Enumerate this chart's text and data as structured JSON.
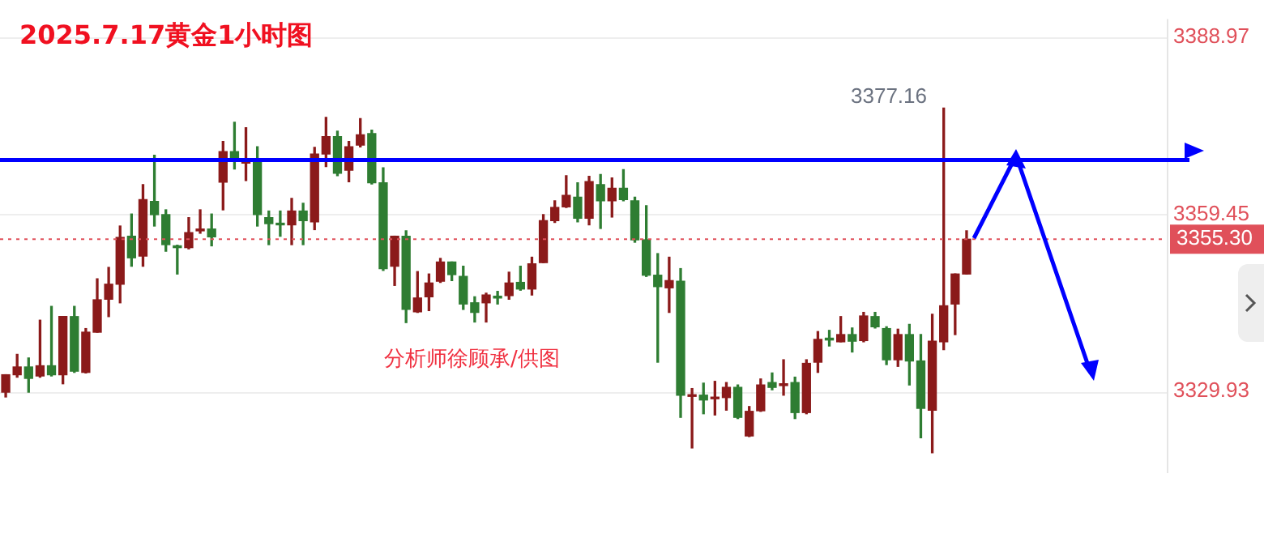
{
  "chart_data": {
    "type": "candlestick",
    "title": "2025.7.17黄金1小时图",
    "categories": [
      null,
      null,
      null,
      null,
      null,
      null,
      null,
      null,
      null,
      null,
      null,
      null,
      null,
      null,
      null,
      null,
      null,
      null,
      null,
      null,
      null,
      null,
      null,
      null,
      null,
      null,
      null,
      null,
      null,
      null,
      null,
      null,
      null,
      null,
      null,
      null,
      null,
      null,
      null,
      null,
      null,
      null,
      null,
      null,
      null,
      null,
      null,
      null,
      null,
      null,
      null,
      null,
      null,
      null,
      null,
      null,
      null,
      null,
      null,
      null,
      null,
      null,
      null,
      null,
      null,
      null,
      null,
      null,
      null,
      null,
      null,
      null,
      null,
      null,
      null,
      null,
      null,
      null,
      null,
      null,
      null,
      null,
      null,
      null,
      null,
      null,
      null,
      null,
      null,
      null,
      null,
      null,
      null,
      null,
      null,
      null,
      null,
      null,
      null,
      null,
      null,
      null
    ],
    "ohlc": [
      [
        3329.8,
        3332.7,
        3329.0,
        3332.7
      ],
      [
        3332.7,
        3336.1,
        3332.3,
        3334.0
      ],
      [
        3334.0,
        3335.5,
        3329.8,
        3332.1
      ],
      [
        3332.5,
        3341.8,
        3332.3,
        3334.2
      ],
      [
        3334.2,
        3344.1,
        3332.5,
        3332.7
      ],
      [
        3332.7,
        3342.4,
        3331.2,
        3342.4
      ],
      [
        3342.4,
        3344.1,
        3333.1,
        3333.3
      ],
      [
        3333.1,
        3340.4,
        3333.0,
        3339.8
      ],
      [
        3339.8,
        3348.7,
        3339.8,
        3345.2
      ],
      [
        3345.3,
        3350.6,
        3342.4,
        3347.8
      ],
      [
        3347.8,
        3357.5,
        3344.7,
        3355.6
      ],
      [
        3355.8,
        3359.5,
        3350.8,
        3352.2
      ],
      [
        3352.5,
        3364.4,
        3350.8,
        3361.9
      ],
      [
        3361.6,
        3369.3,
        3357.5,
        3359.4
      ],
      [
        3359.4,
        3360.2,
        3353.3,
        3354.4
      ],
      [
        3354.2,
        3354.3,
        3349.5,
        3353.9
      ],
      [
        3353.9,
        3358.9,
        3353.7,
        3356.4
      ],
      [
        3356.7,
        3360.2,
        3356.3,
        3357.0
      ],
      [
        3357.0,
        3359.5,
        3354.2,
        3355.7
      ],
      [
        3364.8,
        3371.6,
        3360.2,
        3369.9
      ],
      [
        3369.9,
        3374.8,
        3367.0,
        3368.6
      ],
      [
        3368.0,
        3373.9,
        3365.1,
        3368.6
      ],
      [
        3368.6,
        3370.7,
        3357.5,
        3359.4
      ],
      [
        3358.9,
        3360.0,
        3354.4,
        3357.9
      ],
      [
        3357.9,
        3360.0,
        3355.8,
        3357.7
      ],
      [
        3357.7,
        3362.1,
        3354.4,
        3360.0
      ],
      [
        3360.0,
        3361.3,
        3354.4,
        3358.4
      ],
      [
        3358.2,
        3370.6,
        3356.9,
        3369.5
      ],
      [
        3369.5,
        3375.6,
        3367.4,
        3372.4
      ],
      [
        3372.4,
        3373.3,
        3365.9,
        3366.3
      ],
      [
        3366.8,
        3371.6,
        3364.9,
        3370.7
      ],
      [
        3371.0,
        3375.4,
        3370.7,
        3372.7
      ],
      [
        3372.9,
        3373.5,
        3364.5,
        3364.7
      ],
      [
        3364.7,
        3367.2,
        3350.1,
        3350.4
      ],
      [
        3350.8,
        3355.8,
        3347.6,
        3355.8
      ],
      [
        3355.8,
        3356.7,
        3341.4,
        3343.6
      ],
      [
        3343.2,
        3349.9,
        3343.1,
        3345.5
      ],
      [
        3345.7,
        3349.5,
        3343.4,
        3348.0
      ],
      [
        3348.3,
        3352.1,
        3348.1,
        3351.5
      ],
      [
        3351.5,
        3351.5,
        3348.4,
        3349.4
      ],
      [
        3349.1,
        3350.8,
        3343.6,
        3344.5
      ],
      [
        3344.7,
        3345.7,
        3341.5,
        3343.1
      ],
      [
        3344.7,
        3346.3,
        3341.5,
        3346.0
      ],
      [
        3345.8,
        3346.6,
        3344.5,
        3345.5
      ],
      [
        3345.9,
        3349.8,
        3345.3,
        3348.0
      ],
      [
        3348.1,
        3350.8,
        3346.8,
        3347.0
      ],
      [
        3347.0,
        3352.3,
        3346.0,
        3351.2
      ],
      [
        3351.4,
        3359.4,
        3351.4,
        3358.4
      ],
      [
        3358.4,
        3361.7,
        3358.1,
        3360.6
      ],
      [
        3360.7,
        3365.9,
        3360.6,
        3362.6
      ],
      [
        3362.3,
        3364.7,
        3358.2,
        3358.8
      ],
      [
        3358.8,
        3365.8,
        3357.7,
        3364.9
      ],
      [
        3364.4,
        3366.1,
        3357.1,
        3361.7
      ],
      [
        3361.7,
        3365.5,
        3359.0,
        3363.8
      ],
      [
        3363.8,
        3366.9,
        3361.7,
        3361.9
      ],
      [
        3361.7,
        3362.3,
        3354.8,
        3355.2
      ],
      [
        3355.2,
        3360.9,
        3349.1,
        3349.3
      ],
      [
        3349.3,
        3352.9,
        3334.8,
        3347.4
      ],
      [
        3347.2,
        3352.3,
        3343.1,
        3348.4
      ],
      [
        3348.3,
        3350.4,
        3325.6,
        3329.3
      ],
      [
        3329.1,
        3330.4,
        3320.5,
        3329.3
      ],
      [
        3329.3,
        3331.3,
        3326.2,
        3328.5
      ],
      [
        3328.7,
        3331.6,
        3326.0,
        3328.9
      ],
      [
        3328.9,
        3331.4,
        3326.8,
        3330.6
      ],
      [
        3330.6,
        3331.0,
        3325.4,
        3325.6
      ],
      [
        3322.5,
        3327.4,
        3322.4,
        3326.6
      ],
      [
        3326.7,
        3332.0,
        3326.6,
        3331.0
      ],
      [
        3331.4,
        3333.0,
        3330.2,
        3330.6
      ],
      [
        3330.9,
        3335.2,
        3329.3,
        3331.2
      ],
      [
        3331.4,
        3332.3,
        3325.4,
        3326.4
      ],
      [
        3326.4,
        3335.2,
        3326.2,
        3334.6
      ],
      [
        3334.8,
        3339.9,
        3333.1,
        3338.6
      ],
      [
        3338.8,
        3340.1,
        3337.5,
        3338.5
      ],
      [
        3338.2,
        3342.4,
        3338.2,
        3339.4
      ],
      [
        3339.4,
        3340.5,
        3336.5,
        3338.3
      ],
      [
        3338.4,
        3343.1,
        3338.2,
        3342.5
      ],
      [
        3342.4,
        3343.1,
        3340.5,
        3340.7
      ],
      [
        3340.4,
        3340.7,
        3334.4,
        3335.2
      ],
      [
        3335.2,
        3340.3,
        3334.1,
        3339.4
      ],
      [
        3339.4,
        3341.1,
        3331.0,
        3335.0
      ],
      [
        3335.0,
        3339.4,
        3322.2,
        3327.1
      ],
      [
        3326.8,
        3342.8,
        3319.7,
        3338.3
      ],
      [
        3338.2,
        3377.16,
        3336.9,
        3344.2
      ],
      [
        3344.5,
        3349.5,
        3339.4,
        3349.5
      ],
      [
        3349.5,
        3356.7,
        3349.5,
        3355.3
      ],
      null,
      null,
      null,
      null,
      null,
      null,
      null,
      null,
      null,
      null,
      null,
      null,
      null,
      null,
      null,
      null,
      null
    ],
    "colors": [
      "#8b1a1a",
      "#8b1a1a",
      "#2e7d32",
      "#8b1a1a",
      "#2e7d32",
      "#8b1a1a",
      "#2e7d32",
      "#8b1a1a",
      "#8b1a1a",
      "#8b1a1a",
      "#8b1a1a",
      "#2e7d32",
      "#8b1a1a",
      "#2e7d32",
      "#2e7d32",
      "#2e7d32",
      "#8b1a1a",
      "#8b1a1a",
      "#2e7d32",
      "#8b1a1a",
      "#2e7d32",
      "#8b1a1a",
      "#2e7d32",
      "#2e7d32",
      "#2e7d32",
      "#8b1a1a",
      "#2e7d32",
      "#8b1a1a",
      "#8b1a1a",
      "#2e7d32",
      "#8b1a1a",
      "#8b1a1a",
      "#2e7d32",
      "#2e7d32",
      "#8b1a1a",
      "#2e7d32",
      "#8b1a1a",
      "#8b1a1a",
      "#8b1a1a",
      "#2e7d32",
      "#2e7d32",
      "#2e7d32",
      "#8b1a1a",
      "#2e7d32",
      "#8b1a1a",
      "#2e7d32",
      "#8b1a1a",
      "#8b1a1a",
      "#8b1a1a",
      "#8b1a1a",
      "#2e7d32",
      "#8b1a1a",
      "#2e7d32",
      "#8b1a1a",
      "#2e7d32",
      "#2e7d32",
      "#2e7d32",
      "#2e7d32",
      "#8b1a1a",
      "#2e7d32",
      "#8b1a1a",
      "#2e7d32",
      "#8b1a1a",
      "#8b1a1a",
      "#2e7d32",
      "#8b1a1a",
      "#8b1a1a",
      "#2e7d32",
      "#8b1a1a",
      "#2e7d32",
      "#8b1a1a",
      "#8b1a1a",
      "#2e7d32",
      "#8b1a1a",
      "#2e7d32",
      "#8b1a1a",
      "#2e7d32",
      "#2e7d32",
      "#8b1a1a",
      "#2e7d32",
      "#2e7d32",
      "#8b1a1a",
      "#8b1a1a",
      "#8b1a1a",
      "#8b1a1a",
      null,
      null,
      null,
      null,
      null,
      null,
      null,
      null,
      null,
      null,
      null,
      null,
      null,
      null,
      null,
      null,
      null
    ],
    "ylim": [
      3316.3,
      3392.0
    ],
    "yticks": [
      3388.97,
      3359.45,
      3329.93
    ],
    "grid": "y",
    "legend": false,
    "ref_lines": [
      {
        "axis": "y",
        "value": 3368.5,
        "color": "#0000ff",
        "line_style": "solid"
      },
      {
        "axis": "y",
        "value": 3355.3,
        "label": "3355.30",
        "color": "#e0505a",
        "line_style": "dotted"
      }
    ],
    "annotations": [
      "分析师徐顾承/供图",
      "3377.16"
    ]
  }
}
